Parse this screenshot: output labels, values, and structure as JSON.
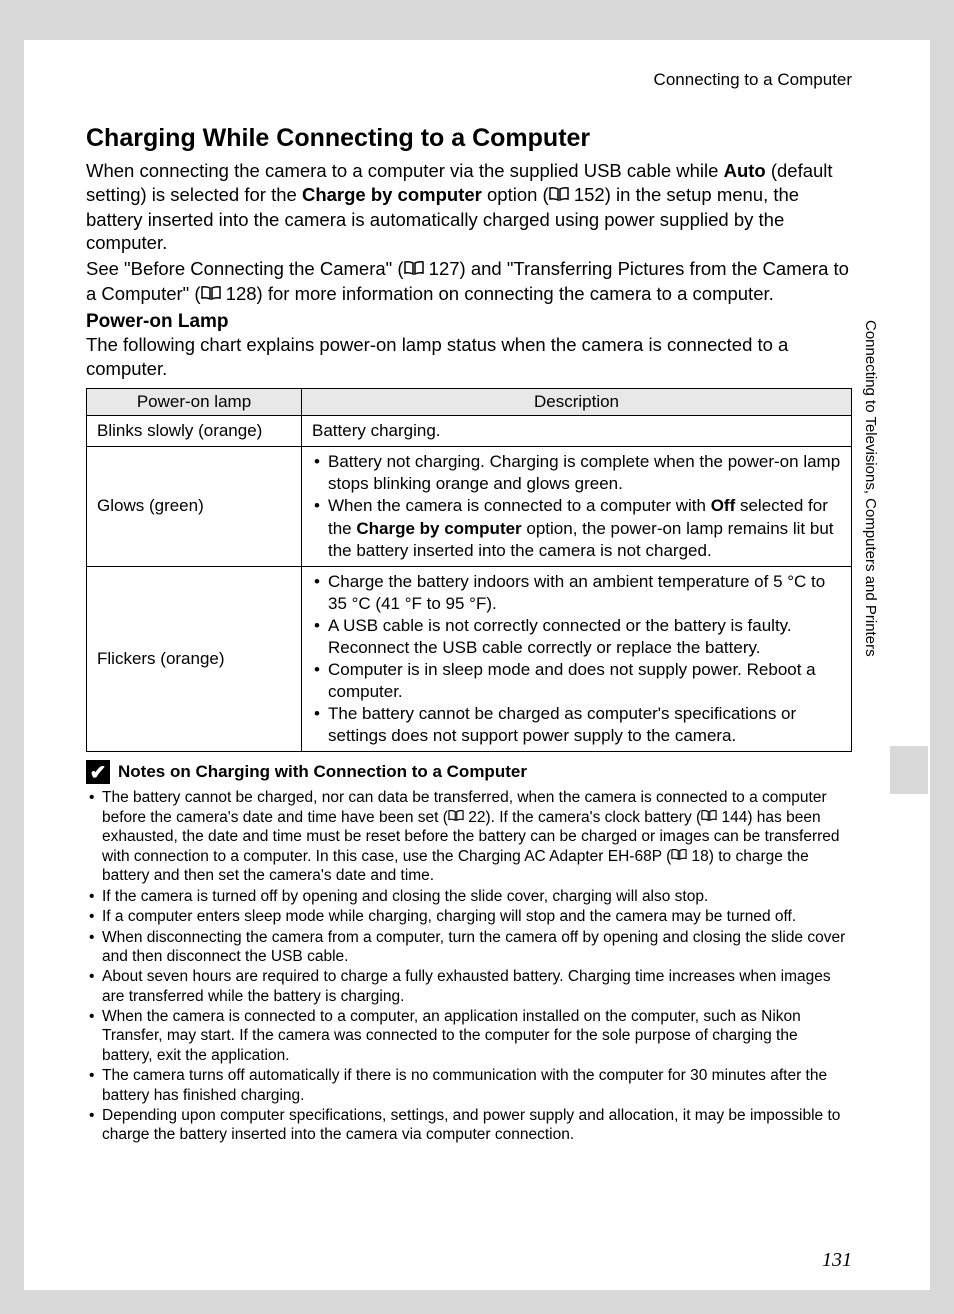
{
  "header": {
    "section": "Connecting to a Computer"
  },
  "title": "Charging While Connecting to a Computer",
  "intro_parts": {
    "p1a": "When connecting the camera to a computer via the supplied USB cable while ",
    "auto": "Auto",
    "p1b": " (default setting) is selected for the ",
    "cbc": "Charge by computer",
    "p1c": " option (",
    "ref1": " 152) in the setup menu, the battery inserted into the camera is automatically charged using power supplied by the computer.",
    "p2a": "See \"Before Connecting the Camera\" (",
    "ref2": " 127) and \"Transferring Pictures from the Camera to a Computer\" (",
    "ref3": " 128) for more information on connecting the camera to a computer."
  },
  "subheading": "Power-on Lamp",
  "subdesc": "The following chart explains power-on lamp status when the camera is connected to a computer.",
  "table": {
    "col1": "Power-on lamp",
    "col2": "Description",
    "rows": [
      {
        "lamp": "Blinks slowly (orange)",
        "desc_plain": "Battery charging."
      },
      {
        "lamp": "Glows (green)",
        "bullets": [
          {
            "a": "Battery not charging. Charging is complete when the power-on lamp stops blinking orange and glows green."
          },
          {
            "a": "When the camera is connected to a computer with ",
            "b1": "Off",
            "c": " selected for the ",
            "b2": "Charge by computer",
            "d": " option, the power-on lamp remains lit but the battery inserted into the camera is not charged."
          }
        ]
      },
      {
        "lamp": "Flickers (orange)",
        "bullets": [
          {
            "a": "Charge the battery indoors with an ambient temperature of 5 °C to 35 °C (41 °F to 95 °F)."
          },
          {
            "a": "A USB cable is not correctly connected or the battery is faulty. Reconnect the USB cable correctly or replace the battery."
          },
          {
            "a": "Computer is in sleep mode and does not supply power. Reboot a computer."
          },
          {
            "a": "The battery cannot be charged as computer's specifications or settings does not support power supply to the camera."
          }
        ]
      }
    ]
  },
  "notes": {
    "title": "Notes on Charging with Connection to a Computer",
    "items": [
      {
        "a": "The battery cannot be charged, nor can data be transferred, when the camera is connected to a computer before the camera's date and time have been set (",
        "r1": " 22). If the camera's clock battery (",
        "r2": " 144) has been exhausted, the date and time must be reset before the battery can be charged or images can be transferred with connection to a computer. In this case, use the Charging AC Adapter EH-68P (",
        "r3": " 18) to charge the battery and then set the camera's date and time."
      },
      {
        "a": "If the camera is turned off by opening and closing the slide cover, charging will also stop."
      },
      {
        "a": "If a computer enters sleep mode while charging, charging will stop and the camera may be turned off."
      },
      {
        "a": "When disconnecting the camera from a computer, turn the camera off by opening and closing the slide cover and then disconnect the USB cable."
      },
      {
        "a": "About seven hours are required to charge a fully exhausted battery. Charging time increases when images are transferred while the battery is charging."
      },
      {
        "a": "When the camera is connected to a computer, an application installed on the computer, such as Nikon Transfer, may start. If the camera was connected to the computer for the sole purpose of charging the battery, exit the application."
      },
      {
        "a": "The camera turns off automatically if there is no communication with the computer for 30 minutes after the battery has finished charging."
      },
      {
        "a": "Depending upon computer specifications, settings, and power supply and allocation, it may be impossible to charge the battery inserted into the camera via computer connection."
      }
    ]
  },
  "side_label": "Connecting to Televisions, Computers and Printers",
  "page_number": "131"
}
